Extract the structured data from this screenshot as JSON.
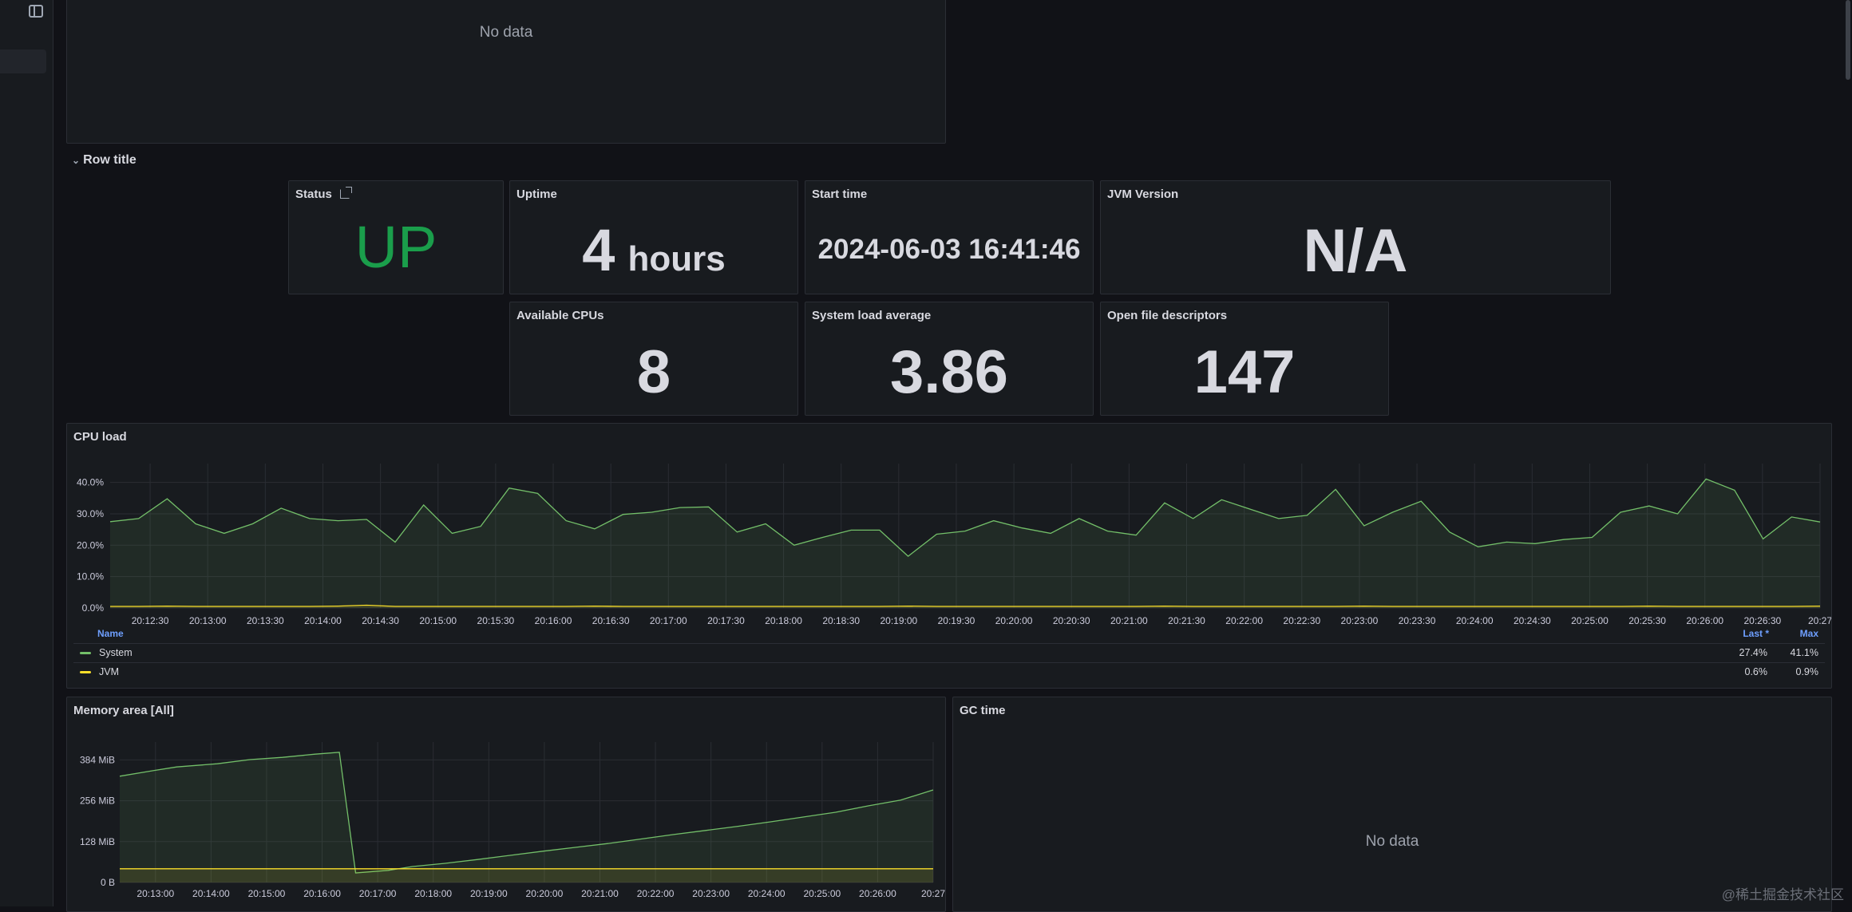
{
  "row": {
    "title": "Row title"
  },
  "top_panel": {
    "no_data": "No data"
  },
  "stats": {
    "status": {
      "title": "Status",
      "value": "UP",
      "color": "#1a9e4b"
    },
    "uptime": {
      "title": "Uptime",
      "value": "4",
      "unit": "hours"
    },
    "start_time": {
      "title": "Start time",
      "value": "2024-06-03 16:41:46"
    },
    "jvm_version": {
      "title": "JVM Version",
      "value": "N/A"
    },
    "available_cpus": {
      "title": "Available CPUs",
      "value": "8"
    },
    "system_load": {
      "title": "System load average",
      "value": "3.86"
    },
    "open_fds": {
      "title": "Open file descriptors",
      "value": "147"
    }
  },
  "cpu_panel": {
    "title": "CPU load",
    "legend_header": {
      "name": "Name",
      "last": "Last *",
      "max": "Max"
    },
    "legend": [
      {
        "name": "System",
        "last": "27.4%",
        "max": "41.1%",
        "color": "#73bf69"
      },
      {
        "name": "JVM",
        "last": "0.6%",
        "max": "0.9%",
        "color": "#fade2a"
      }
    ]
  },
  "memory_panel": {
    "title": "Memory area [All]"
  },
  "gc_panel": {
    "title": "GC time",
    "no_data": "No data"
  },
  "watermark": "@稀土掘金技术社区",
  "chart_data": [
    {
      "type": "area",
      "title": "CPU load",
      "y_ticks": [
        "0.0%",
        "10.0%",
        "20.0%",
        "30.0%",
        "40.0%"
      ],
      "ylim": [
        0,
        46
      ],
      "x_ticks": [
        "20:12:30",
        "20:13:00",
        "20:13:30",
        "20:14:00",
        "20:14:30",
        "20:15:00",
        "20:15:30",
        "20:16:00",
        "20:16:30",
        "20:17:00",
        "20:17:30",
        "20:18:00",
        "20:18:30",
        "20:19:00",
        "20:19:30",
        "20:20:00",
        "20:20:30",
        "20:21:00",
        "20:21:30",
        "20:22:00",
        "20:22:30",
        "20:23:00",
        "20:23:30",
        "20:24:00",
        "20:24:30",
        "20:25:00",
        "20:25:30",
        "20:26:00",
        "20:26:30",
        "20:27"
      ],
      "grid": true,
      "legend": "bottom",
      "series": [
        {
          "name": "System",
          "color": "#73bf69",
          "values": [
            27.5,
            28.5,
            34.8,
            26.8,
            23.8,
            26.8,
            31.8,
            28.5,
            27.8,
            28.2,
            21.0,
            32.8,
            23.8,
            26.0,
            38.2,
            36.5,
            27.8,
            25.2,
            29.8,
            30.5,
            32.0,
            32.2,
            24.2,
            26.8,
            20.0,
            22.5,
            24.8,
            24.8,
            16.5,
            23.5,
            24.5,
            27.8,
            25.5,
            23.8,
            28.5,
            24.5,
            23.2,
            33.5,
            28.5,
            34.5,
            31.5,
            28.5,
            29.5,
            37.8,
            26.2,
            30.5,
            34.0,
            24.2,
            19.5,
            21.0,
            20.5,
            21.8,
            22.5,
            30.5,
            32.5,
            30.0,
            41.1,
            37.5,
            22.0,
            29.0,
            27.4
          ]
        },
        {
          "name": "JVM",
          "color": "#fade2a",
          "values": [
            0.5,
            0.5,
            0.6,
            0.5,
            0.5,
            0.5,
            0.5,
            0.5,
            0.6,
            0.9,
            0.5,
            0.5,
            0.5,
            0.5,
            0.5,
            0.5,
            0.5,
            0.6,
            0.5,
            0.5,
            0.5,
            0.5,
            0.5,
            0.5,
            0.5,
            0.5,
            0.5,
            0.5,
            0.6,
            0.5,
            0.5,
            0.5,
            0.5,
            0.5,
            0.5,
            0.5,
            0.5,
            0.6,
            0.5,
            0.5,
            0.5,
            0.5,
            0.5,
            0.5,
            0.6,
            0.5,
            0.5,
            0.5,
            0.5,
            0.5,
            0.5,
            0.5,
            0.5,
            0.5,
            0.6,
            0.5,
            0.5,
            0.5,
            0.5,
            0.5,
            0.6
          ]
        }
      ]
    },
    {
      "type": "area",
      "title": "Memory area [All]",
      "y_ticks": [
        "0 B",
        "128 MiB",
        "256 MiB",
        "384 MiB"
      ],
      "y_tick_values": [
        0,
        128,
        256,
        384
      ],
      "ylim": [
        0,
        440
      ],
      "x_ticks": [
        "20:13:00",
        "20:14:00",
        "20:15:00",
        "20:16:00",
        "20:17:00",
        "20:18:00",
        "20:19:00",
        "20:20:00",
        "20:21:00",
        "20:22:00",
        "20:23:00",
        "20:24:00",
        "20:25:00",
        "20:26:00",
        "20:27"
      ],
      "grid": true,
      "series": [
        {
          "name": "",
          "color": "#73bf69",
          "points": [
            [
              0,
              333
            ],
            [
              0.04,
              350
            ],
            [
              0.07,
              362
            ],
            [
              0.12,
              372
            ],
            [
              0.16,
              385
            ],
            [
              0.2,
              392
            ],
            [
              0.24,
              402
            ],
            [
              0.27,
              408
            ],
            [
              0.29,
              30
            ],
            [
              0.33,
              38
            ],
            [
              0.36,
              50
            ],
            [
              0.4,
              60
            ],
            [
              0.44,
              72
            ],
            [
              0.48,
              85
            ],
            [
              0.52,
              98
            ],
            [
              0.56,
              110
            ],
            [
              0.6,
              122
            ],
            [
              0.64,
              136
            ],
            [
              0.68,
              150
            ],
            [
              0.72,
              163
            ],
            [
              0.76,
              176
            ],
            [
              0.8,
              190
            ],
            [
              0.84,
              205
            ],
            [
              0.88,
              220
            ],
            [
              0.92,
              240
            ],
            [
              0.96,
              258
            ],
            [
              1.0,
              290
            ]
          ]
        },
        {
          "name": "",
          "color": "#fade2a",
          "points": [
            [
              0,
              43
            ],
            [
              1.0,
              43
            ]
          ]
        }
      ]
    }
  ]
}
